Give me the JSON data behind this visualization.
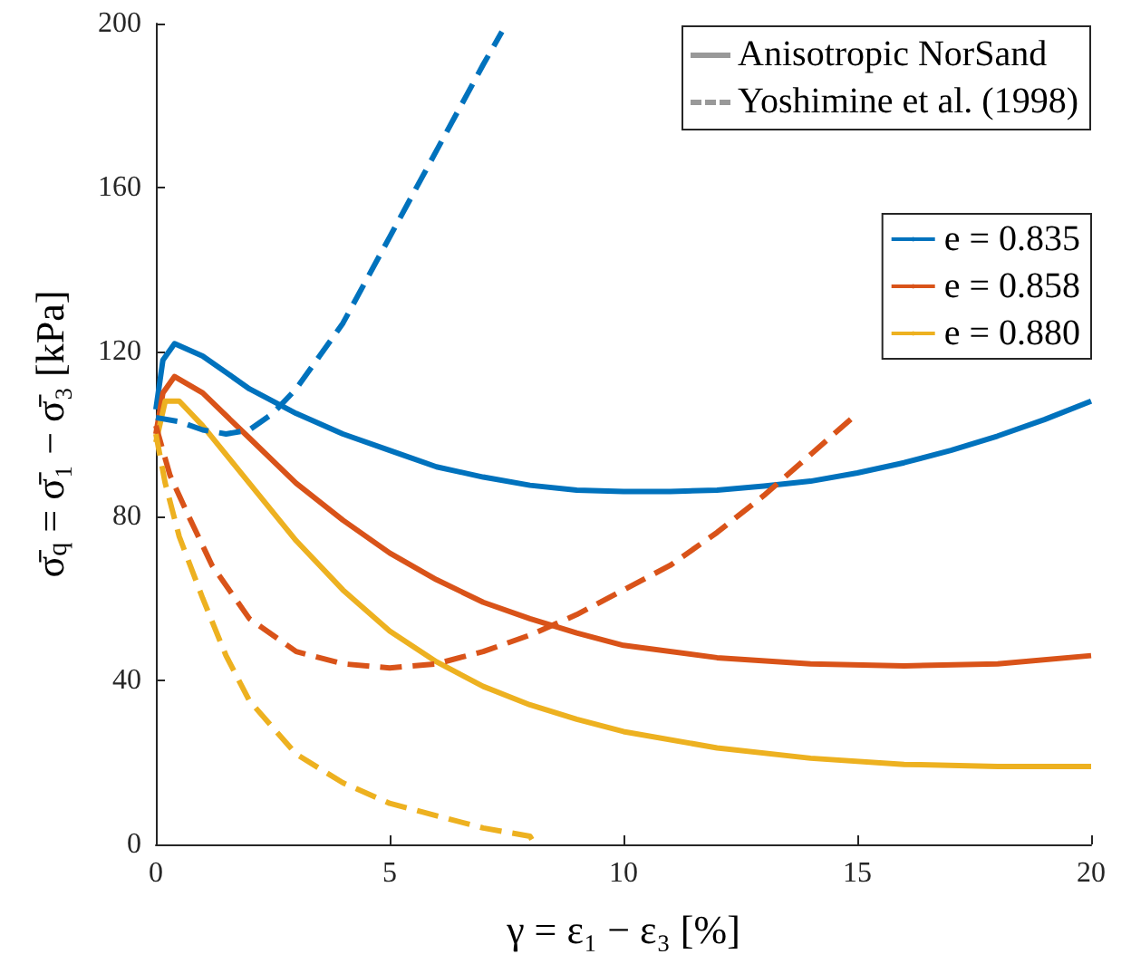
{
  "chart_data": {
    "type": "line",
    "xlabel": "γ = ε₁ − ε₃ [%]",
    "ylabel": "σ̄$_{q}$ = σ̄₁ − σ̄₃ [kPa]",
    "annotations": [
      "Anisotropic NorSand",
      "Yoshimine et al. (1998)"
    ],
    "xlim": [
      0,
      20
    ],
    "xticks": [
      0,
      5,
      10,
      15,
      20
    ],
    "ylim": [
      0,
      200
    ],
    "yticks": [
      0,
      40,
      80,
      120,
      160,
      200
    ],
    "grid": false,
    "legend": "right",
    "marker": "none",
    "series": [
      {
        "name": "e = 0.835",
        "color": "#0072bd",
        "line_style": "solid",
        "x": [
          0,
          0.15,
          0.4,
          1,
          2,
          3,
          4,
          5,
          6,
          7,
          8,
          9,
          10,
          11,
          12,
          13,
          14,
          15,
          16,
          17,
          18,
          19,
          20
        ],
        "values": [
          106,
          118,
          122,
          119,
          111,
          105,
          100,
          96,
          92,
          89.5,
          87.5,
          86.3,
          86,
          86,
          86.3,
          87.3,
          88.5,
          90.5,
          93,
          96,
          99.5,
          103.5,
          108
        ]
      },
      {
        "name": "e = 0.858",
        "color": "#d95319",
        "line_style": "solid",
        "x": [
          0,
          0.15,
          0.4,
          1,
          2,
          3,
          4,
          5,
          6,
          7,
          8,
          9,
          10,
          12,
          14,
          16,
          18,
          20
        ],
        "values": [
          100,
          110,
          114,
          110,
          99,
          88,
          79,
          71,
          64.5,
          59,
          55,
          51.5,
          48.5,
          45.5,
          44,
          43.5,
          44,
          46
        ]
      },
      {
        "name": "e = 0.880",
        "color": "#edb120",
        "line_style": "solid",
        "x": [
          0,
          0.2,
          0.5,
          1,
          2,
          3,
          4,
          5,
          6,
          7,
          8,
          9,
          10,
          12,
          14,
          16,
          18,
          20
        ],
        "values": [
          98,
          108,
          108,
          102,
          88,
          74,
          62,
          52,
          44.5,
          38.5,
          34,
          30.5,
          27.5,
          23.5,
          21,
          19.5,
          19,
          19
        ]
      },
      {
        "color": "#0072bd",
        "line_style": "dashed",
        "x": [
          0,
          0.5,
          1,
          1.5,
          2,
          2.5,
          3,
          4,
          5,
          6,
          7,
          7.4
        ],
        "values": [
          104,
          103,
          101,
          100,
          101,
          105,
          111,
          127,
          148,
          169,
          190,
          198
        ]
      },
      {
        "color": "#d95319",
        "line_style": "dashed",
        "x": [
          0,
          0.3,
          0.7,
          1.2,
          2,
          3,
          4,
          5,
          6,
          7,
          8,
          9,
          10,
          11,
          12,
          13,
          14,
          14.9
        ],
        "values": [
          102,
          90,
          80,
          68,
          55,
          47,
          44,
          43,
          44,
          47,
          51,
          56,
          62,
          68,
          76,
          85,
          95,
          104
        ]
      },
      {
        "color": "#edb120",
        "line_style": "dashed",
        "x": [
          0,
          0.2,
          0.5,
          1,
          1.5,
          2,
          3,
          4,
          5,
          6,
          7,
          8,
          8.1
        ],
        "values": [
          100,
          88,
          75,
          60,
          46,
          35,
          22,
          15,
          10,
          7,
          4,
          2,
          0
        ]
      }
    ]
  }
}
